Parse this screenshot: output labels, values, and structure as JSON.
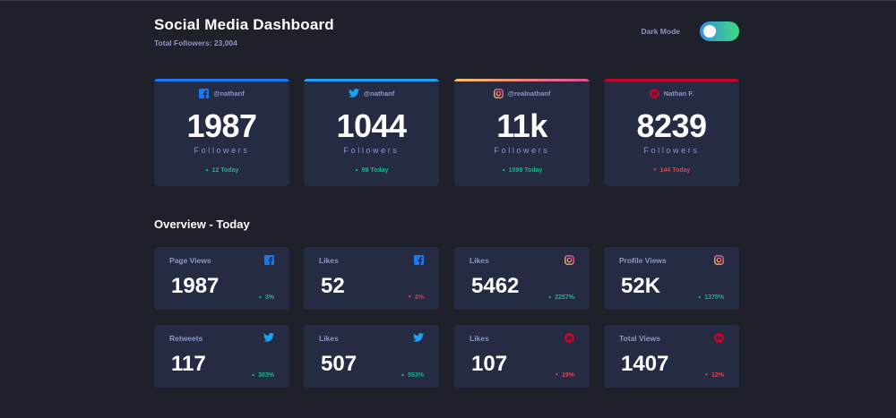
{
  "header": {
    "title": "Social Media Dashboard",
    "total_followers": "Total Followers: 23,004",
    "dark_mode_label": "Dark Mode"
  },
  "colors": {
    "facebook": "#1877f2",
    "twitter": "#1da1f2",
    "instagram_start": "#fdc468",
    "instagram_end": "#df4996",
    "youtube": "#c4032a",
    "up": "#1db489",
    "down": "#dc414c"
  },
  "cards": [
    {
      "platform": "facebook",
      "icon": "facebook-icon",
      "handle": "@nathanf",
      "count": "1987",
      "label": "Followers",
      "today": "12 Today",
      "trend": "up"
    },
    {
      "platform": "twitter",
      "icon": "twitter-icon",
      "handle": "@nathanf",
      "count": "1044",
      "label": "Followers",
      "today": "99 Today",
      "trend": "up"
    },
    {
      "platform": "instagram",
      "icon": "instagram-icon",
      "handle": "@realnathanf",
      "count": "11k",
      "label": "Followers",
      "today": "1099 Today",
      "trend": "up"
    },
    {
      "platform": "youtube",
      "icon": "youtube-icon",
      "handle": "Nathan F.",
      "count": "8239",
      "label": "Followers",
      "today": "144 Today",
      "trend": "down"
    }
  ],
  "overview": {
    "title": "Overview - Today",
    "items": [
      {
        "label": "Page Views",
        "icon": "facebook-icon",
        "value": "1987",
        "change": "3%",
        "trend": "up"
      },
      {
        "label": "Likes",
        "icon": "facebook-icon",
        "value": "52",
        "change": "2%",
        "trend": "down"
      },
      {
        "label": "Likes",
        "icon": "instagram-icon",
        "value": "5462",
        "change": "2257%",
        "trend": "up"
      },
      {
        "label": "Profile Views",
        "icon": "instagram-icon",
        "value": "52K",
        "change": "1375%",
        "trend": "up"
      },
      {
        "label": "Retweets",
        "icon": "twitter-icon",
        "value": "117",
        "change": "303%",
        "trend": "up"
      },
      {
        "label": "Likes",
        "icon": "twitter-icon",
        "value": "507",
        "change": "553%",
        "trend": "up"
      },
      {
        "label": "Likes",
        "icon": "youtube-icon",
        "value": "107",
        "change": "19%",
        "trend": "down"
      },
      {
        "label": "Total Views",
        "icon": "youtube-icon",
        "value": "1407",
        "change": "12%",
        "trend": "down"
      }
    ]
  }
}
